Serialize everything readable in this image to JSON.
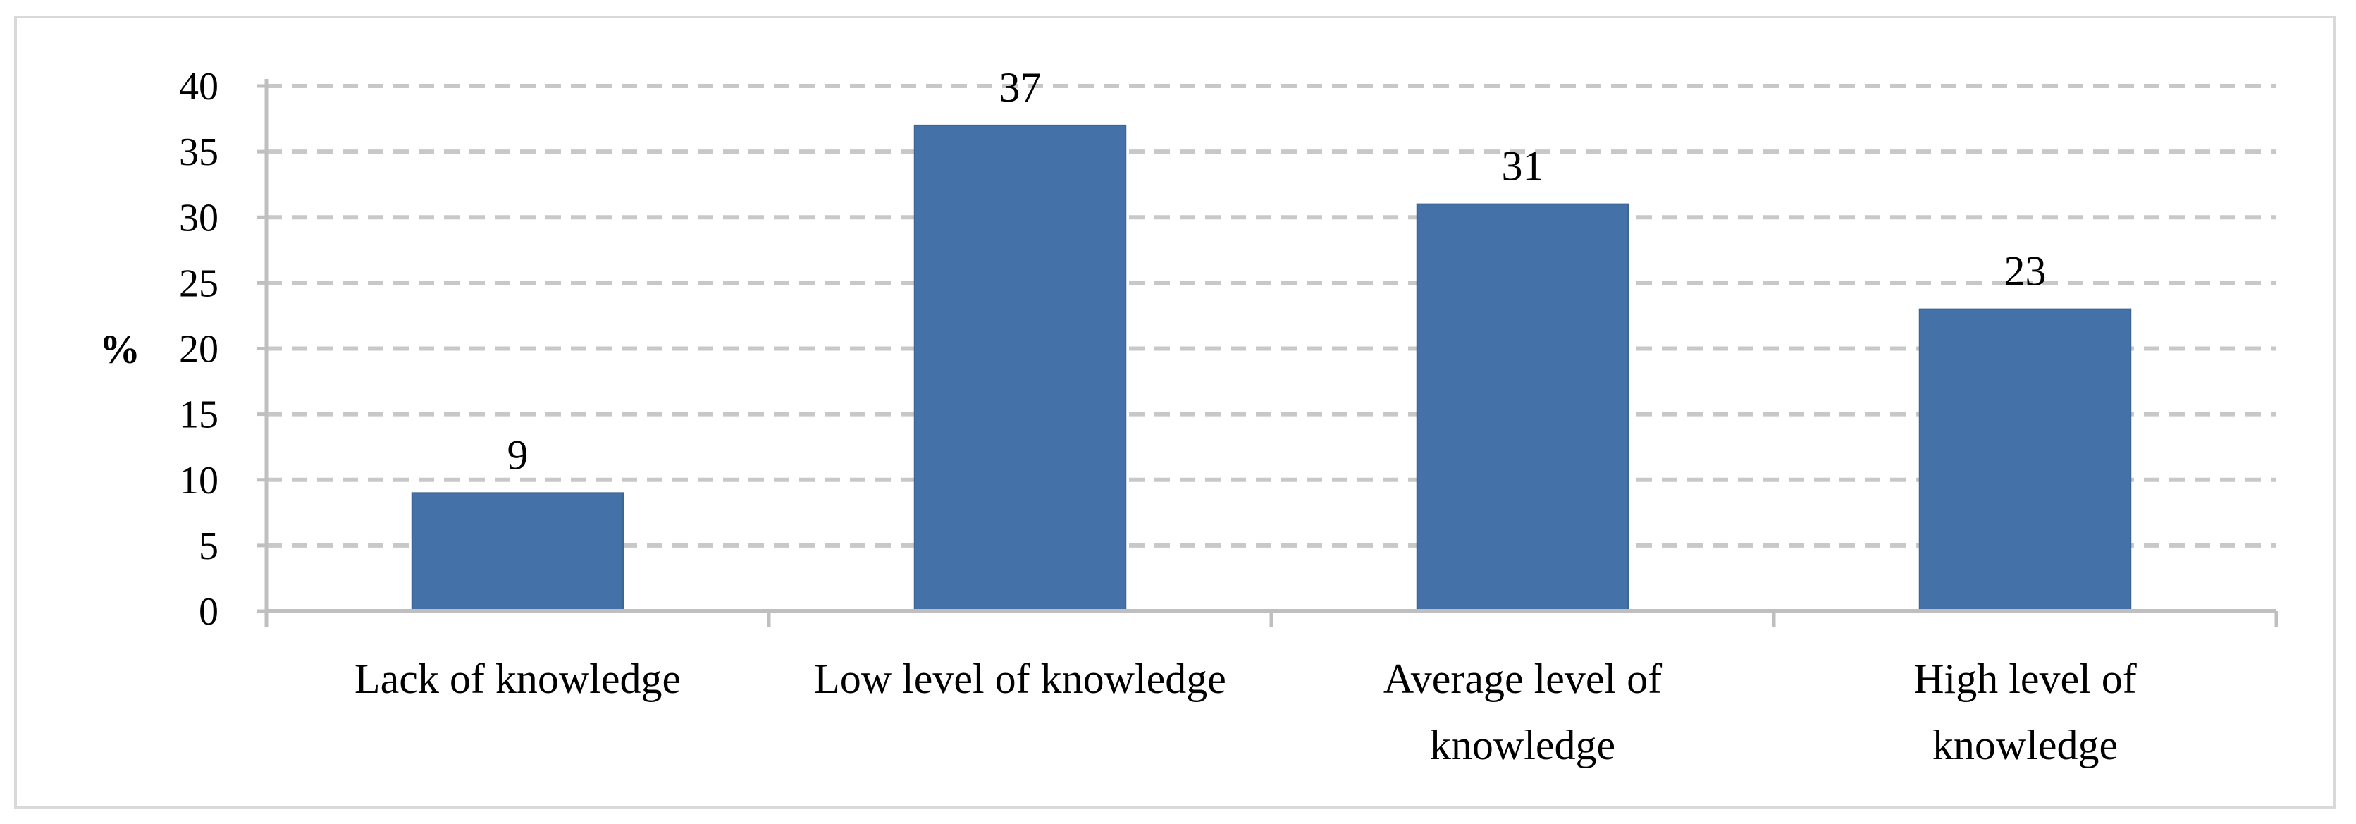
{
  "chart_data": {
    "type": "bar",
    "categories": [
      [
        "Lack of knowledge"
      ],
      [
        "Low level of knowledge"
      ],
      [
        "Average level of",
        "knowledge"
      ],
      [
        "High level of",
        "knowledge"
      ]
    ],
    "values": [
      9,
      37,
      31,
      23
    ],
    "data_labels": [
      "9",
      "37",
      "31",
      "23"
    ],
    "ylabel": "%",
    "ylim": [
      0,
      40
    ],
    "yticks": [
      0,
      5,
      10,
      15,
      20,
      25,
      30,
      35,
      40
    ],
    "grid": "horizontal dashed",
    "colors": {
      "bar": "#4472a8",
      "grid": "#c8c8c8",
      "axis": "#bfbfbf"
    }
  }
}
